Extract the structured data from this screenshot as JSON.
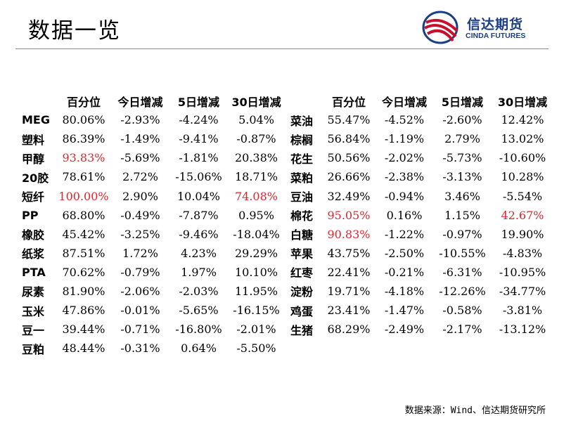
{
  "title": "数据一览",
  "logo": {
    "cn": "信达期货",
    "en": "CINDA FUTURES"
  },
  "headers": [
    "百分位",
    "今日增减",
    "5日增减",
    "30日增减"
  ],
  "colors": {
    "highlight": "#e0242b",
    "brand": "#1b3f86",
    "logo_red": "#c8102e"
  },
  "left_rows": [
    {
      "name": "MEG",
      "pct": "80.06%",
      "d1": "-2.93%",
      "d5": "-4.24%",
      "d30": "5.04%"
    },
    {
      "name": "塑料",
      "pct": "86.39%",
      "d1": "-1.49%",
      "d5": "-9.41%",
      "d30": "-0.87%"
    },
    {
      "name": "甲醇",
      "pct": "93.83%",
      "d1": "-5.69%",
      "d5": "-1.81%",
      "d30": "20.38%",
      "pct_red": true
    },
    {
      "name": "20胶",
      "pct": "78.61%",
      "d1": "2.72%",
      "d5": "-15.06%",
      "d30": "18.71%"
    },
    {
      "name": "短纤",
      "pct": "100.00%",
      "d1": "2.90%",
      "d5": "10.04%",
      "d30": "74.08%",
      "pct_red": true,
      "d30_red": true
    },
    {
      "name": "PP",
      "pct": "68.80%",
      "d1": "-0.49%",
      "d5": "-7.87%",
      "d30": "0.95%"
    },
    {
      "name": "橡胶",
      "pct": "45.42%",
      "d1": "-3.25%",
      "d5": "-9.46%",
      "d30": "-18.04%"
    },
    {
      "name": "纸浆",
      "pct": "87.51%",
      "d1": "1.72%",
      "d5": "4.23%",
      "d30": "29.29%"
    },
    {
      "name": "PTA",
      "pct": "70.62%",
      "d1": "-0.79%",
      "d5": "1.97%",
      "d30": "10.10%"
    },
    {
      "name": "尿素",
      "pct": "81.90%",
      "d1": "-2.06%",
      "d5": "-2.03%",
      "d30": "11.95%"
    },
    {
      "name": "玉米",
      "pct": "47.86%",
      "d1": "-0.01%",
      "d5": "-5.65%",
      "d30": "-16.15%"
    },
    {
      "name": "豆一",
      "pct": "39.44%",
      "d1": "-0.71%",
      "d5": "-16.80%",
      "d30": "-2.01%"
    },
    {
      "name": "豆粕",
      "pct": "48.44%",
      "d1": "-0.31%",
      "d5": "0.64%",
      "d30": "-5.50%"
    }
  ],
  "right_rows": [
    {
      "name": "菜油",
      "pct": "55.47%",
      "d1": "-4.52%",
      "d5": "-2.60%",
      "d30": "12.42%"
    },
    {
      "name": "棕榈",
      "pct": "56.84%",
      "d1": "-1.19%",
      "d5": "2.79%",
      "d30": "13.02%"
    },
    {
      "name": "花生",
      "pct": "50.56%",
      "d1": "-2.02%",
      "d5": "-5.73%",
      "d30": "-10.60%"
    },
    {
      "name": "菜粕",
      "pct": "26.66%",
      "d1": "-2.38%",
      "d5": "-3.13%",
      "d30": "10.28%"
    },
    {
      "name": "豆油",
      "pct": "32.49%",
      "d1": "-0.94%",
      "d5": "3.46%",
      "d30": "-5.54%"
    },
    {
      "name": "棉花",
      "pct": "95.05%",
      "d1": "0.16%",
      "d5": "1.15%",
      "d30": "42.67%",
      "pct_red": true,
      "d30_red": true
    },
    {
      "name": "白糖",
      "pct": "90.83%",
      "d1": "-1.22%",
      "d5": "-0.97%",
      "d30": "19.90%",
      "pct_red": true
    },
    {
      "name": "苹果",
      "pct": "43.75%",
      "d1": "-2.50%",
      "d5": "-10.55%",
      "d30": "-4.83%"
    },
    {
      "name": "红枣",
      "pct": "22.41%",
      "d1": "-0.21%",
      "d5": "-6.31%",
      "d30": "-10.95%"
    },
    {
      "name": "淀粉",
      "pct": "19.71%",
      "d1": "-4.18%",
      "d5": "-12.26%",
      "d30": "-34.77%"
    },
    {
      "name": "鸡蛋",
      "pct": "23.41%",
      "d1": "-1.47%",
      "d5": "-0.58%",
      "d30": "-3.81%"
    },
    {
      "name": "生猪",
      "pct": "68.29%",
      "d1": "-2.49%",
      "d5": "-2.17%",
      "d30": "-13.12%"
    }
  ],
  "source": "数据来源：Wind、信达期货研究所"
}
